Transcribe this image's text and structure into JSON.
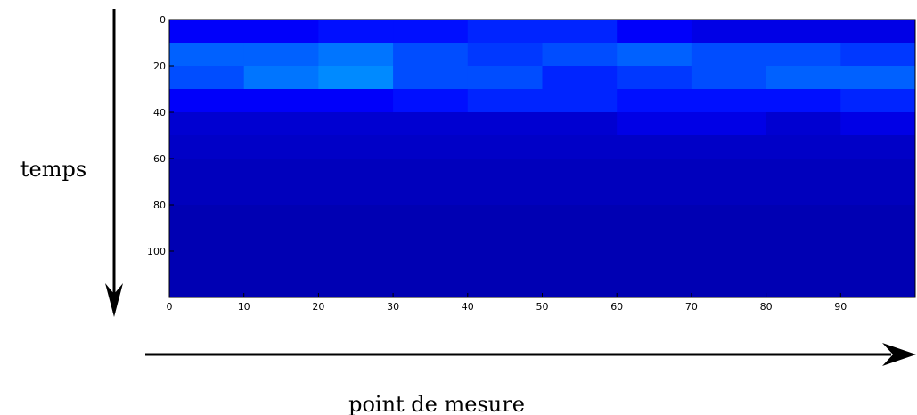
{
  "chart_data": {
    "type": "heatmap",
    "y_label": "temps",
    "x_label": "point de mesure",
    "xlim": [
      0,
      100
    ],
    "ylim": [
      0,
      120
    ],
    "xticks": [
      0,
      10,
      20,
      30,
      40,
      50,
      60,
      70,
      80,
      90
    ],
    "yticks": [
      0,
      20,
      40,
      60,
      80,
      100
    ],
    "y_reversed": true,
    "colormap": "jet",
    "z": [
      [
        0.12,
        0.12,
        0.14,
        0.14,
        0.16,
        0.16,
        0.12,
        0.1,
        0.1,
        0.1
      ],
      [
        0.22,
        0.22,
        0.24,
        0.2,
        0.18,
        0.2,
        0.22,
        0.2,
        0.2,
        0.18
      ],
      [
        0.2,
        0.24,
        0.26,
        0.2,
        0.2,
        0.16,
        0.18,
        0.2,
        0.22,
        0.22
      ],
      [
        0.12,
        0.12,
        0.12,
        0.14,
        0.16,
        0.16,
        0.14,
        0.14,
        0.14,
        0.16
      ],
      [
        0.08,
        0.08,
        0.08,
        0.08,
        0.08,
        0.08,
        0.1,
        0.1,
        0.08,
        0.1
      ],
      [
        0.07,
        0.07,
        0.07,
        0.07,
        0.07,
        0.07,
        0.07,
        0.07,
        0.07,
        0.07
      ],
      [
        0.06,
        0.06,
        0.06,
        0.06,
        0.06,
        0.06,
        0.06,
        0.06,
        0.06,
        0.06
      ],
      [
        0.06,
        0.06,
        0.06,
        0.06,
        0.06,
        0.06,
        0.06,
        0.06,
        0.06,
        0.06
      ],
      [
        0.05,
        0.05,
        0.05,
        0.05,
        0.05,
        0.05,
        0.05,
        0.05,
        0.05,
        0.05
      ],
      [
        0.05,
        0.05,
        0.05,
        0.05,
        0.05,
        0.05,
        0.05,
        0.05,
        0.05,
        0.05
      ],
      [
        0.05,
        0.05,
        0.05,
        0.05,
        0.05,
        0.05,
        0.05,
        0.05,
        0.05,
        0.05
      ],
      [
        0.05,
        0.05,
        0.05,
        0.05,
        0.05,
        0.05,
        0.05,
        0.05,
        0.05,
        0.05
      ]
    ]
  }
}
